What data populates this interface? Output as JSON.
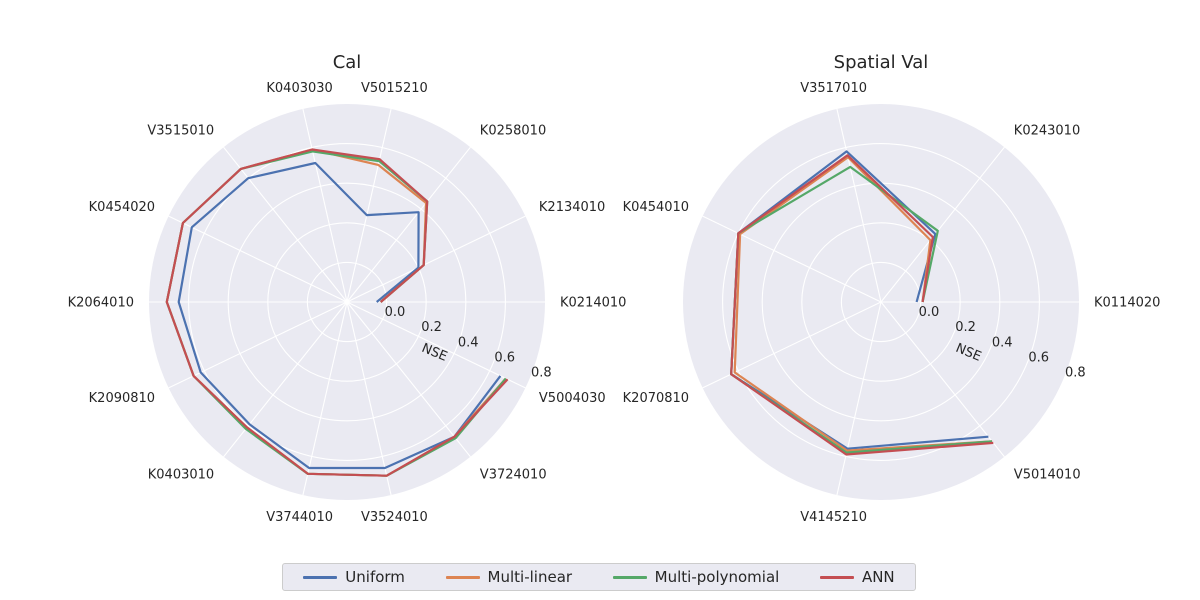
{
  "colors": {
    "Uniform": "#4c72b0",
    "Multi-linear": "#dd8452",
    "Multi-polynomial": "#55a868",
    "ANN": "#c44e52"
  },
  "chart_data": [
    {
      "type": "radar",
      "title": "Cal",
      "radial_label": "NSE",
      "rlim": [
        0,
        1
      ],
      "radial_ticks": [
        "0.0",
        "0.2",
        "0.4",
        "0.6",
        "0.8"
      ],
      "categories": [
        "K0214010",
        "K2134010",
        "K0258010",
        "V5015210",
        "K0403030",
        "V3515010",
        "K0454020",
        "K2064010",
        "K2090810",
        "K0403010",
        "V3744010",
        "V3524010",
        "V3724010",
        "V5004030"
      ],
      "series": [
        {
          "name": "Uniform",
          "values": [
            0.15,
            0.4,
            0.58,
            0.45,
            0.72,
            0.8,
            0.87,
            0.85,
            0.82,
            0.79,
            0.86,
            0.86,
            0.87,
            0.86
          ]
        },
        {
          "name": "Multi-linear",
          "values": [
            0.17,
            0.43,
            0.64,
            0.71,
            0.79,
            0.86,
            0.92,
            0.91,
            0.86,
            0.81,
            0.89,
            0.9,
            0.87,
            0.89
          ]
        },
        {
          "name": "Multi-polynomial",
          "values": [
            0.17,
            0.43,
            0.65,
            0.73,
            0.78,
            0.86,
            0.92,
            0.91,
            0.86,
            0.82,
            0.89,
            0.9,
            0.88,
            0.89
          ]
        },
        {
          "name": "ANN",
          "values": [
            0.17,
            0.43,
            0.65,
            0.74,
            0.79,
            0.86,
            0.92,
            0.91,
            0.86,
            0.81,
            0.89,
            0.9,
            0.87,
            0.9
          ]
        }
      ]
    },
    {
      "type": "radar",
      "title": "Spatial Val",
      "radial_label": "NSE",
      "rlim": [
        0,
        1
      ],
      "radial_ticks": [
        "0.0",
        "0.2",
        "0.4",
        "0.6",
        "0.8"
      ],
      "categories": [
        "K0114020",
        "K0243010",
        "V3517010",
        "K0454010",
        "K2070810",
        "V4145210",
        "V5014010"
      ],
      "series": [
        {
          "name": "Uniform",
          "values": [
            0.18,
            0.44,
            0.78,
            0.8,
            0.84,
            0.76,
            0.87
          ]
        },
        {
          "name": "Multi-linear",
          "values": [
            0.21,
            0.4,
            0.75,
            0.79,
            0.82,
            0.77,
            0.9
          ]
        },
        {
          "name": "Multi-polynomial",
          "values": [
            0.21,
            0.46,
            0.7,
            0.8,
            0.84,
            0.78,
            0.9
          ]
        },
        {
          "name": "ANN",
          "values": [
            0.21,
            0.42,
            0.76,
            0.8,
            0.84,
            0.79,
            0.91
          ]
        }
      ]
    }
  ],
  "legend": {
    "placement": "bottom-center",
    "items": [
      "Uniform",
      "Multi-linear",
      "Multi-polynomial",
      "ANN"
    ]
  }
}
